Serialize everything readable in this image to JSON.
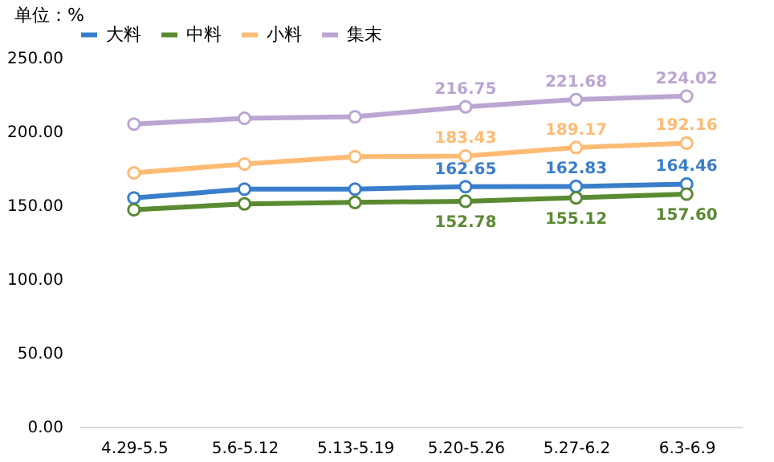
{
  "chart_data": {
    "type": "line",
    "ylabel": "单位：%",
    "categories": [
      "4.29-5.5",
      "5.6-5.12",
      "5.13-5.19",
      "5.20-5.26",
      "5.27-6.2",
      "6.3-6.9"
    ],
    "series": [
      {
        "name": "大料",
        "color": "#3a7ecb",
        "values": [
          155,
          161,
          161,
          162.65,
          162.83,
          164.46
        ],
        "value_labels": [
          null,
          null,
          null,
          "162.65",
          "162.83",
          "164.46"
        ]
      },
      {
        "name": "中料",
        "color": "#5a8a32",
        "values": [
          147,
          151,
          152,
          152.78,
          155.12,
          157.6
        ],
        "value_labels": [
          null,
          null,
          null,
          "152.78",
          "155.12",
          "157.60"
        ]
      },
      {
        "name": "小料",
        "color": "#fdbb74",
        "values": [
          172,
          178,
          183,
          183.43,
          189.17,
          192.16
        ],
        "value_labels": [
          null,
          null,
          null,
          "183.43",
          "189.17",
          "192.16"
        ]
      },
      {
        "name": "集末",
        "color": "#bba5d3",
        "values": [
          205,
          209,
          210,
          216.75,
          221.68,
          224.02
        ],
        "value_labels": [
          null,
          null,
          null,
          "216.75",
          "221.68",
          "224.02"
        ]
      }
    ],
    "ylim": [
      0,
      250
    ],
    "yticks": [
      {
        "value": 0,
        "label": "0.00"
      },
      {
        "value": 50,
        "label": "50.00"
      },
      {
        "value": 100,
        "label": "100.00"
      },
      {
        "value": 150,
        "label": "150.00"
      },
      {
        "value": 200,
        "label": "200.00"
      },
      {
        "value": 250,
        "label": "250.00"
      }
    ],
    "grid": false,
    "legend": "top",
    "marker": "circle",
    "line_style": "solid"
  }
}
